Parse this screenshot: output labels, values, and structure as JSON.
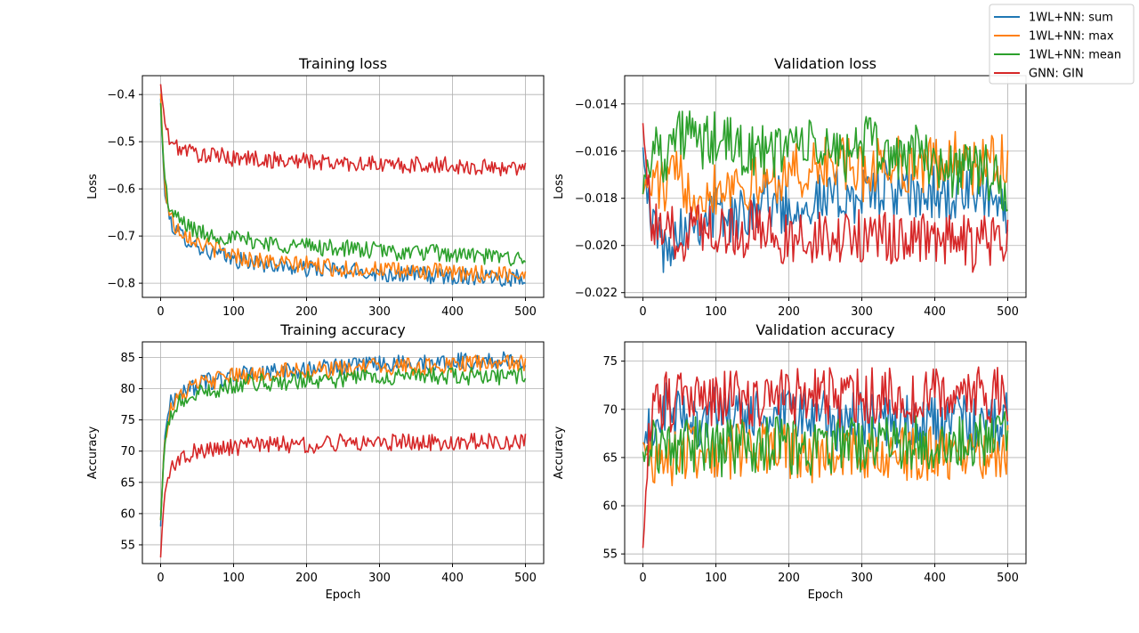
{
  "colors": {
    "sum": "#1f77b4",
    "max": "#ff7f0e",
    "mean": "#2ca02c",
    "gin": "#d62728",
    "grid": "#b0b0b0"
  },
  "legend": {
    "placement": "top-right",
    "entries": [
      "1WL+NN: sum",
      "1WL+NN: max",
      "1WL+NN: mean",
      "GNN: GIN"
    ]
  },
  "chart_data": [
    {
      "type": "line",
      "title": "Training loss",
      "xlabel": "",
      "ylabel": "Loss",
      "xlim": [
        -25,
        525
      ],
      "ylim": [
        -0.83,
        -0.36
      ],
      "grid": true,
      "xticks": [
        0,
        100,
        200,
        300,
        400,
        500
      ],
      "xtick_labels": [
        "0",
        "100",
        "200",
        "300",
        "400",
        "500"
      ],
      "yticks": [
        -0.8,
        -0.7,
        -0.6,
        -0.5,
        -0.4
      ],
      "ytick_labels": [
        "−0.8",
        "−0.7",
        "−0.6",
        "−0.5",
        "−0.4"
      ],
      "x": [
        0,
        5,
        10,
        15,
        20,
        30,
        40,
        50,
        60,
        80,
        100,
        125,
        150,
        175,
        200,
        225,
        250,
        275,
        300,
        325,
        350,
        375,
        400,
        425,
        450,
        475,
        500
      ],
      "series": [
        {
          "name": "1WL+NN: sum",
          "values": [
            -0.41,
            -0.6,
            -0.65,
            -0.67,
            -0.69,
            -0.7,
            -0.71,
            -0.72,
            -0.73,
            -0.74,
            -0.75,
            -0.755,
            -0.76,
            -0.765,
            -0.77,
            -0.77,
            -0.775,
            -0.775,
            -0.78,
            -0.78,
            -0.78,
            -0.785,
            -0.785,
            -0.785,
            -0.785,
            -0.79,
            -0.785
          ]
        },
        {
          "name": "1WL+NN: max",
          "values": [
            -0.4,
            -0.58,
            -0.64,
            -0.66,
            -0.68,
            -0.69,
            -0.7,
            -0.71,
            -0.72,
            -0.73,
            -0.74,
            -0.75,
            -0.755,
            -0.76,
            -0.76,
            -0.765,
            -0.77,
            -0.77,
            -0.77,
            -0.775,
            -0.775,
            -0.775,
            -0.78,
            -0.78,
            -0.78,
            -0.78,
            -0.78
          ]
        },
        {
          "name": "1WL+NN: mean",
          "values": [
            -0.42,
            -0.57,
            -0.63,
            -0.65,
            -0.66,
            -0.67,
            -0.68,
            -0.69,
            -0.695,
            -0.7,
            -0.705,
            -0.71,
            -0.715,
            -0.72,
            -0.72,
            -0.725,
            -0.725,
            -0.73,
            -0.73,
            -0.735,
            -0.735,
            -0.735,
            -0.74,
            -0.74,
            -0.745,
            -0.745,
            -0.745
          ]
        },
        {
          "name": "GNN: GIN",
          "values": [
            -0.38,
            -0.45,
            -0.49,
            -0.5,
            -0.51,
            -0.515,
            -0.52,
            -0.525,
            -0.53,
            -0.53,
            -0.535,
            -0.535,
            -0.54,
            -0.54,
            -0.54,
            -0.545,
            -0.545,
            -0.545,
            -0.55,
            -0.55,
            -0.55,
            -0.55,
            -0.55,
            -0.555,
            -0.555,
            -0.555,
            -0.555
          ]
        }
      ]
    },
    {
      "type": "line",
      "title": "Validation loss",
      "xlabel": "",
      "ylabel": "Loss",
      "xlim": [
        -25,
        525
      ],
      "ylim": [
        -0.0222,
        -0.0128
      ],
      "grid": true,
      "xticks": [
        0,
        100,
        200,
        300,
        400,
        500
      ],
      "xtick_labels": [
        "0",
        "100",
        "200",
        "300",
        "400",
        "500"
      ],
      "yticks": [
        -0.022,
        -0.02,
        -0.018,
        -0.016,
        -0.014
      ],
      "ytick_labels": [
        "−0.022",
        "−0.020",
        "−0.018",
        "−0.016",
        "−0.014"
      ],
      "x": [
        0,
        10,
        20,
        30,
        40,
        60,
        80,
        100,
        125,
        150,
        175,
        200,
        225,
        250,
        275,
        300,
        325,
        350,
        375,
        400,
        425,
        450,
        475,
        500
      ],
      "series": [
        {
          "name": "1WL+NN: sum",
          "values": [
            -0.0155,
            -0.0195,
            -0.019,
            -0.0205,
            -0.0195,
            -0.019,
            -0.0188,
            -0.0185,
            -0.019,
            -0.0182,
            -0.018,
            -0.0185,
            -0.018,
            -0.0182,
            -0.0178,
            -0.018,
            -0.0175,
            -0.0178,
            -0.018,
            -0.0178,
            -0.018,
            -0.0178,
            -0.018,
            -0.0185
          ]
        },
        {
          "name": "1WL+NN: max",
          "values": [
            -0.0175,
            -0.0175,
            -0.0172,
            -0.0178,
            -0.017,
            -0.0175,
            -0.0178,
            -0.0175,
            -0.0172,
            -0.0175,
            -0.0172,
            -0.0168,
            -0.017,
            -0.0165,
            -0.0165,
            -0.017,
            -0.0165,
            -0.0165,
            -0.0168,
            -0.0165,
            -0.0162,
            -0.0168,
            -0.0165,
            -0.0165
          ]
        },
        {
          "name": "1WL+NN: mean",
          "values": [
            -0.0175,
            -0.016,
            -0.0158,
            -0.0162,
            -0.0155,
            -0.0152,
            -0.0158,
            -0.0155,
            -0.0158,
            -0.016,
            -0.0162,
            -0.0155,
            -0.0158,
            -0.016,
            -0.0162,
            -0.0155,
            -0.016,
            -0.0162,
            -0.016,
            -0.0165,
            -0.0168,
            -0.0165,
            -0.017,
            -0.018
          ]
        },
        {
          "name": "GNN: GIN",
          "values": [
            -0.0145,
            -0.019,
            -0.0195,
            -0.0198,
            -0.0195,
            -0.0195,
            -0.019,
            -0.0192,
            -0.0195,
            -0.0192,
            -0.0195,
            -0.0198,
            -0.0195,
            -0.0198,
            -0.0198,
            -0.0195,
            -0.0198,
            -0.0198,
            -0.0195,
            -0.0198,
            -0.0198,
            -0.02,
            -0.0198,
            -0.0198
          ]
        }
      ]
    },
    {
      "type": "line",
      "title": "Training accuracy",
      "xlabel": "Epoch",
      "ylabel": "Accuracy",
      "xlim": [
        -25,
        525
      ],
      "ylim": [
        52,
        87.5
      ],
      "grid": true,
      "xticks": [
        0,
        100,
        200,
        300,
        400,
        500
      ],
      "xtick_labels": [
        "0",
        "100",
        "200",
        "300",
        "400",
        "500"
      ],
      "yticks": [
        55,
        60,
        65,
        70,
        75,
        80,
        85
      ],
      "ytick_labels": [
        "55",
        "60",
        "65",
        "70",
        "75",
        "80",
        "85"
      ],
      "x": [
        0,
        5,
        10,
        15,
        20,
        30,
        40,
        50,
        60,
        80,
        100,
        125,
        150,
        175,
        200,
        225,
        250,
        275,
        300,
        325,
        350,
        375,
        400,
        425,
        450,
        475,
        500
      ],
      "series": [
        {
          "name": "1WL+NN: sum",
          "values": [
            58,
            72,
            76,
            78,
            78.5,
            79.5,
            80,
            80.5,
            81,
            81.5,
            82,
            82.5,
            82.5,
            83,
            83,
            83.5,
            83.5,
            83.5,
            84,
            84,
            84,
            84,
            84.5,
            84.5,
            84.5,
            84.5,
            84.5
          ]
        },
        {
          "name": "1WL+NN: max",
          "values": [
            59,
            71,
            75,
            77,
            78,
            79,
            80,
            80.5,
            81,
            81.5,
            82,
            82,
            82.5,
            83,
            83,
            83,
            83,
            83.5,
            83.5,
            83.5,
            83.5,
            83.5,
            84,
            84,
            84,
            84,
            84
          ]
        },
        {
          "name": "1WL+NN: mean",
          "values": [
            59,
            70,
            74,
            76,
            77,
            78,
            78.5,
            79,
            79.5,
            80,
            80.5,
            81,
            81,
            81,
            81.5,
            81.5,
            81.5,
            82,
            82,
            82,
            82,
            82,
            82,
            82,
            82,
            82,
            82
          ]
        },
        {
          "name": "GNN: GIN",
          "values": [
            53,
            63,
            66,
            67,
            68,
            69,
            69.5,
            70,
            70,
            70.5,
            70.5,
            71,
            71,
            71,
            71,
            71,
            71.5,
            71.5,
            71.5,
            71.5,
            71.5,
            71.5,
            71.5,
            71.5,
            71.5,
            71.5,
            71.5
          ]
        }
      ]
    },
    {
      "type": "line",
      "title": "Validation accuracy",
      "xlabel": "Epoch",
      "ylabel": "Accuracy",
      "xlim": [
        -25,
        525
      ],
      "ylim": [
        54,
        77
      ],
      "grid": true,
      "xticks": [
        0,
        100,
        200,
        300,
        400,
        500
      ],
      "xtick_labels": [
        "0",
        "100",
        "200",
        "300",
        "400",
        "500"
      ],
      "yticks": [
        55,
        60,
        65,
        70,
        75
      ],
      "ytick_labels": [
        "55",
        "60",
        "65",
        "70",
        "75"
      ],
      "x": [
        0,
        10,
        20,
        30,
        40,
        60,
        80,
        100,
        125,
        150,
        175,
        200,
        225,
        250,
        275,
        300,
        325,
        350,
        375,
        400,
        425,
        450,
        475,
        500
      ],
      "series": [
        {
          "name": "1WL+NN: sum",
          "values": [
            66,
            68,
            69,
            70,
            69,
            69.5,
            69,
            69.5,
            69,
            69.5,
            69,
            69,
            69.5,
            69,
            68.5,
            69,
            69,
            68.5,
            68.5,
            68.5,
            68.5,
            68.5,
            68,
            69
          ]
        },
        {
          "name": "1WL+NN: max",
          "values": [
            66,
            65,
            65.5,
            65,
            65,
            65.5,
            66,
            65.5,
            65.5,
            66,
            65.5,
            65.5,
            65,
            65.5,
            65.5,
            65.5,
            65.5,
            65,
            65.5,
            65.5,
            65.5,
            66,
            65.5,
            66
          ]
        },
        {
          "name": "1WL+NN: mean",
          "values": [
            65,
            66,
            66.5,
            66,
            66,
            66,
            66.5,
            66,
            66,
            66,
            66.5,
            66,
            66,
            66.5,
            66,
            66.5,
            66.5,
            66.5,
            66.5,
            66.5,
            67,
            67,
            67,
            68
          ]
        },
        {
          "name": "GNN: GIN",
          "values": [
            55,
            69,
            70.5,
            71,
            70.5,
            71,
            71.5,
            71,
            71.5,
            71,
            71.5,
            71,
            71.5,
            71.5,
            71,
            71.5,
            71.5,
            71.5,
            71.5,
            71.5,
            71.5,
            72,
            71.5,
            71.5
          ]
        }
      ]
    }
  ]
}
